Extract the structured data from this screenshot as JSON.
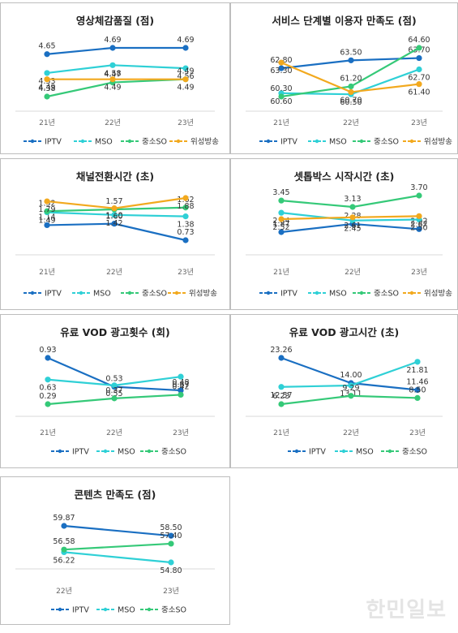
{
  "chart_data": [
    {
      "type": "line",
      "title": "영상체감품질 (점)",
      "categories": [
        "21년",
        "22년",
        "23년"
      ],
      "series": [
        {
          "name": "IPTV",
          "values": [
            4.65,
            4.69,
            4.69
          ],
          "color": "#1a6fc2"
        },
        {
          "name": "MSO",
          "values": [
            4.53,
            4.58,
            4.56
          ],
          "color": "#2fd0d6"
        },
        {
          "name": "중소SO",
          "values": [
            4.38,
            4.47,
            4.49
          ],
          "color": "#35c978"
        },
        {
          "name": "위성방송",
          "values": [
            4.49,
            4.49,
            4.49
          ],
          "color": "#f2a91e"
        }
      ]
    },
    {
      "type": "line",
      "title": "서비스 단계별 이용자 만족도 (점)",
      "categories": [
        "21년",
        "22년",
        "23년"
      ],
      "series": [
        {
          "name": "IPTV",
          "values": [
            62.8,
            63.5,
            63.7
          ],
          "color": "#1a6fc2"
        },
        {
          "name": "MSO",
          "values": [
            60.6,
            60.5,
            62.7
          ],
          "color": "#2fd0d6"
        },
        {
          "name": "중소SO",
          "values": [
            60.3,
            61.2,
            64.6
          ],
          "color": "#35c978"
        },
        {
          "name": "위성방송",
          "values": [
            63.3,
            60.7,
            61.4
          ],
          "color": "#f2a91e"
        }
      ]
    },
    {
      "type": "line",
      "title": "채널전환시간 (초)",
      "categories": [
        "21년",
        "22년",
        "23년"
      ],
      "series": [
        {
          "name": "IPTV",
          "values": [
            1.14,
            1.18,
            0.73
          ],
          "color": "#1a6fc2"
        },
        {
          "name": "MSO",
          "values": [
            1.49,
            1.42,
            1.38
          ],
          "color": "#2fd0d6"
        },
        {
          "name": "중소SO",
          "values": [
            1.52,
            1.57,
            1.62
          ],
          "color": "#35c978"
        },
        {
          "name": "위성방송",
          "values": [
            1.79,
            1.6,
            1.88
          ],
          "color": "#f2a91e"
        }
      ]
    },
    {
      "type": "line",
      "title": "셋톱박스 시작시간 (초)",
      "categories": [
        "21년",
        "22년",
        "23년"
      ],
      "series": [
        {
          "name": "IPTV",
          "values": [
            1.87,
            2.28,
            2.02
          ],
          "color": "#1a6fc2"
        },
        {
          "name": "MSO",
          "values": [
            2.84,
            2.45,
            2.5
          ],
          "color": "#2fd0d6"
        },
        {
          "name": "중소SO",
          "values": [
            3.45,
            3.13,
            3.7
          ],
          "color": "#35c978"
        },
        {
          "name": "위성방송",
          "values": [
            2.52,
            2.61,
            2.67
          ],
          "color": "#f2a91e"
        }
      ]
    },
    {
      "type": "line",
      "title": "유료 VOD 광고횟수 (회)",
      "categories": [
        "21년",
        "22년",
        "23년"
      ],
      "series": [
        {
          "name": "IPTV",
          "values": [
            0.93,
            0.53,
            0.48
          ],
          "color": "#1a6fc2"
        },
        {
          "name": "MSO",
          "values": [
            0.63,
            0.55,
            0.67
          ],
          "color": "#2fd0d6"
        },
        {
          "name": "중소SO",
          "values": [
            0.29,
            0.37,
            0.42
          ],
          "color": "#35c978"
        }
      ]
    },
    {
      "type": "line",
      "title": "유료 VOD 광고시간 (초)",
      "categories": [
        "21년",
        "22년",
        "23년"
      ],
      "series": [
        {
          "name": "IPTV",
          "values": [
            23.26,
            14.0,
            11.46
          ],
          "color": "#1a6fc2"
        },
        {
          "name": "MSO",
          "values": [
            12.57,
            13.11,
            21.81
          ],
          "color": "#2fd0d6"
        },
        {
          "name": "중소SO",
          "values": [
            6.23,
            9.29,
            8.5
          ],
          "color": "#35c978"
        }
      ]
    },
    {
      "type": "line",
      "title": "콘텐츠 만족도 (점)",
      "categories": [
        "22년",
        "23년"
      ],
      "series": [
        {
          "name": "IPTV",
          "values": [
            59.87,
            58.5
          ],
          "color": "#1a6fc2"
        },
        {
          "name": "MSO",
          "values": [
            56.22,
            54.8
          ],
          "color": "#2fd0d6"
        },
        {
          "name": "중소SO",
          "values": [
            56.58,
            57.4
          ],
          "color": "#35c978"
        }
      ]
    }
  ],
  "watermark": "한민일보"
}
